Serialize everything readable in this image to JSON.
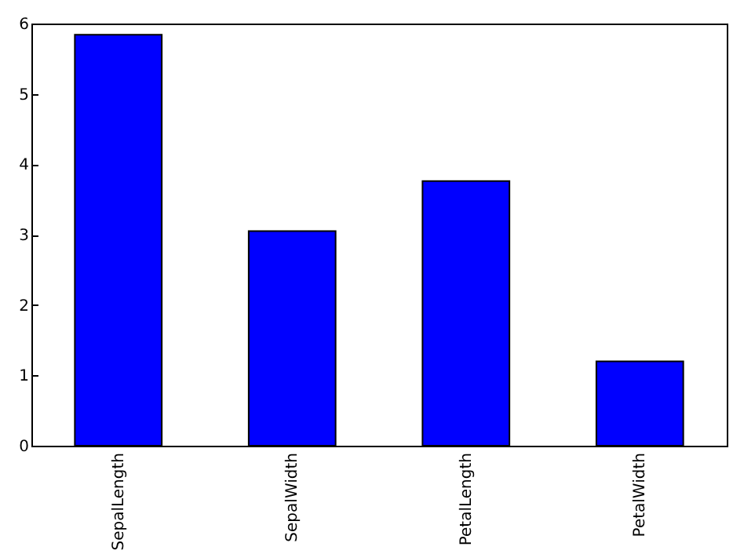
{
  "chart_data": {
    "type": "bar",
    "categories": [
      "SepalLength",
      "SepalWidth",
      "PetalLength",
      "PetalWidth"
    ],
    "values": [
      5.84,
      3.05,
      3.76,
      1.2
    ],
    "color": "#0000ff",
    "ylim": [
      0,
      6
    ],
    "yticks": [
      0,
      1,
      2,
      3,
      4,
      5,
      6
    ],
    "grid": false
  }
}
